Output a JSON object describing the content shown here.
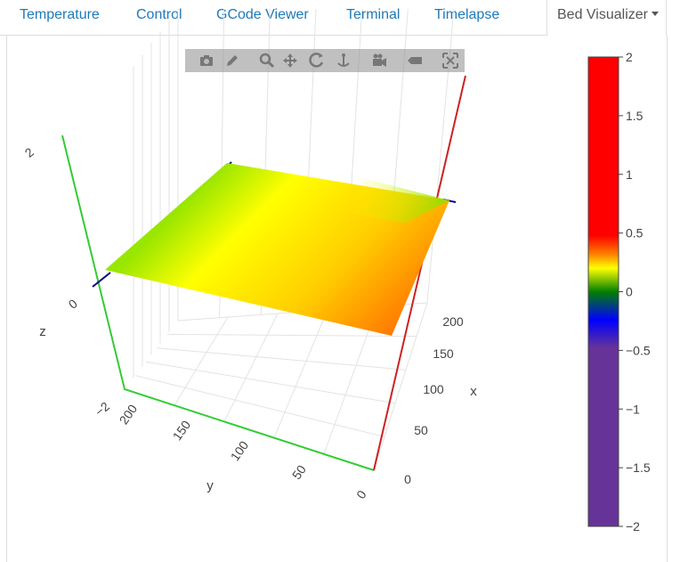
{
  "tabs": [
    {
      "label": "Temperature"
    },
    {
      "label": "Control"
    },
    {
      "label": "GCode Viewer"
    },
    {
      "label": "Terminal"
    },
    {
      "label": "Timelapse"
    },
    {
      "label": "Bed Visualizer",
      "active": true
    }
  ],
  "modebar": {
    "buttons": [
      "camera-icon",
      "pencil-icon",
      "zoom-icon",
      "pan-icon",
      "orbit-icon",
      "turntable-icon",
      "reset-camera-icon",
      "hover-icon",
      "autoscale-icon"
    ]
  },
  "colors": {
    "x_axis": "#cc2222",
    "y_axis": "#33cc33",
    "marker": "#00008b",
    "grid": "#e3e3e3",
    "tab_link": "#1f7ab8"
  },
  "chart_data": {
    "type": "surface",
    "axes": {
      "x": {
        "label": "x",
        "ticks": [
          "0",
          "50",
          "100",
          "150",
          "200"
        ]
      },
      "y": {
        "label": "y",
        "ticks": [
          "0",
          "50",
          "100",
          "150",
          "200"
        ]
      },
      "z": {
        "label": "z",
        "ticks": [
          "−2",
          "0",
          "2"
        ],
        "range": [
          -2,
          2
        ]
      }
    },
    "surface_corners": {
      "x0_y0": 0.1,
      "x200_y0": 0.3,
      "x0_y200": 0.05,
      "x200_y200": 0.25
    },
    "colorbar": {
      "ticks": [
        "2",
        "1.5",
        "1",
        "0.5",
        "0",
        "−0.5",
        "−1",
        "−1.5",
        "−2"
      ],
      "range": [
        -2,
        2
      ],
      "colorscale": [
        "#663399",
        "#663399",
        "#0000ff",
        "#008000",
        "#ffff00",
        "#ff8000",
        "#ff0000",
        "#ff0000"
      ]
    }
  }
}
